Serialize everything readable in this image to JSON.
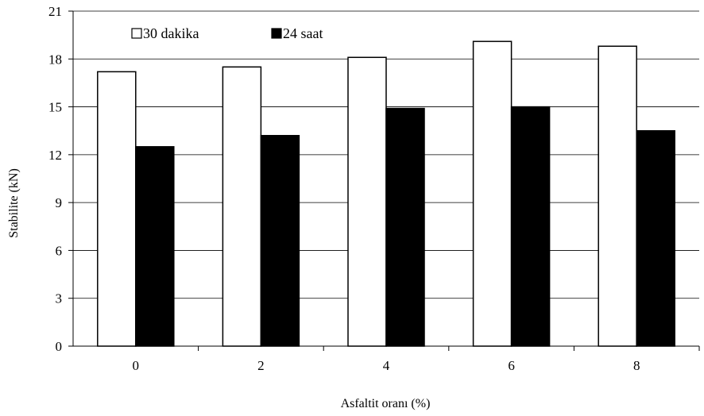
{
  "chart_data": {
    "type": "bar",
    "title": "",
    "xlabel": "Asfaltit oranı (%)",
    "ylabel": "Stabilite (kN)",
    "categories": [
      "0",
      "2",
      "4",
      "6",
      "8"
    ],
    "series": [
      {
        "name": "30 dakika",
        "color": "#ffffff",
        "values": [
          17.2,
          17.5,
          18.1,
          19.1,
          18.8
        ]
      },
      {
        "name": "24 saat",
        "color": "#000000",
        "values": [
          12.5,
          13.2,
          14.9,
          15.0,
          13.5
        ]
      }
    ],
    "ylim": [
      0,
      21
    ],
    "yticks": [
      0,
      3,
      6,
      9,
      12,
      15,
      18,
      21
    ],
    "grid": true,
    "legend_position": "top-left"
  }
}
